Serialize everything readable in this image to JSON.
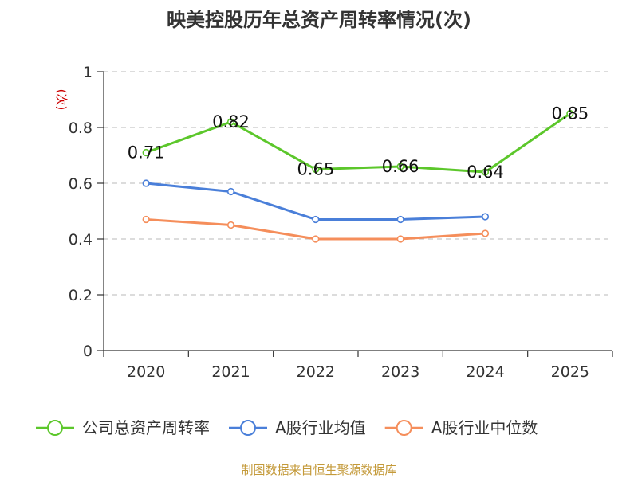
{
  "chart_data": {
    "type": "line",
    "title": "映美控股历年总资产周转率情况(次)",
    "ylabel": "(次)",
    "xlabel": "",
    "categories": [
      "2020",
      "2021",
      "2022",
      "2023",
      "2024",
      "2025"
    ],
    "ylim": [
      0,
      1
    ],
    "yticks": [
      0,
      0.2,
      0.4,
      0.6,
      0.8,
      1
    ],
    "ytick_labels": [
      "0",
      "0.2",
      "0.4",
      "0.6",
      "0.8",
      "1"
    ],
    "grid": "horizontal-dashed",
    "legend_position": "bottom",
    "series": [
      {
        "name": "公司总资产周转率",
        "color": "#5cc72b",
        "values": [
          0.71,
          0.82,
          0.65,
          0.66,
          0.64,
          0.85
        ],
        "labels": [
          "0.71",
          "0.82",
          "0.65",
          "0.66",
          "0.64",
          "0.85"
        ]
      },
      {
        "name": "A股行业均值",
        "color": "#4a7fd9",
        "values": [
          0.6,
          0.57,
          0.47,
          0.47,
          0.48,
          null
        ]
      },
      {
        "name": "A股行业中位数",
        "color": "#f58e5b",
        "values": [
          0.47,
          0.45,
          0.4,
          0.4,
          0.42,
          null
        ]
      }
    ]
  },
  "source": "制图数据来自恒生聚源数据库"
}
